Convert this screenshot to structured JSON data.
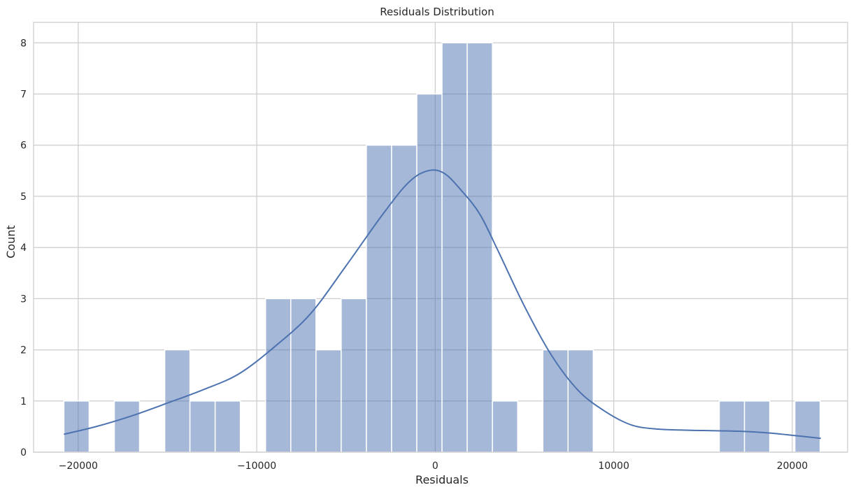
{
  "chart_data": {
    "type": "bar",
    "title": "Residuals Distribution",
    "xlabel": "Residuals",
    "ylabel": "Count",
    "xlim": [
      -22500,
      23100
    ],
    "ylim": [
      0,
      8.4
    ],
    "grid": true,
    "x_ticks": [
      -20000,
      -10000,
      0,
      10000,
      20000
    ],
    "x_tick_labels": [
      "−20000",
      "−10000",
      "0",
      "10000",
      "20000"
    ],
    "y_ticks": [
      0,
      1,
      2,
      3,
      4,
      5,
      6,
      7,
      8
    ],
    "y_tick_labels": [
      "0",
      "1",
      "2",
      "3",
      "4",
      "5",
      "6",
      "7",
      "8"
    ],
    "bin_start": -20800,
    "bin_width": 1412,
    "counts": [
      1,
      0,
      1,
      0,
      2,
      1,
      1,
      0,
      3,
      3,
      2,
      3,
      6,
      6,
      7,
      8,
      8,
      1,
      0,
      2,
      2,
      0,
      0,
      0,
      0,
      0,
      1,
      1,
      0,
      1
    ],
    "bar_color": "#4c72b0",
    "bar_alpha": 0.5,
    "kde": {
      "x": [
        -20800,
        -19000,
        -17000,
        -15000,
        -13000,
        -11000,
        -9000,
        -7000,
        -5000,
        -3000,
        -1500,
        -400,
        500,
        1500,
        2500,
        3500,
        5000,
        6500,
        8000,
        9500,
        11000,
        12500,
        14000,
        15500,
        17000,
        18500,
        20000,
        21600
      ],
      "y": [
        0.35,
        0.5,
        0.71,
        0.96,
        1.22,
        1.53,
        2.06,
        2.7,
        3.64,
        4.62,
        5.27,
        5.5,
        5.45,
        5.1,
        4.65,
        3.95,
        2.85,
        1.9,
        1.21,
        0.8,
        0.53,
        0.45,
        0.43,
        0.42,
        0.41,
        0.38,
        0.33,
        0.27
      ],
      "color": "#4c72b0"
    },
    "grid_color": "#cccccc",
    "spine_color": "#cccccc"
  }
}
